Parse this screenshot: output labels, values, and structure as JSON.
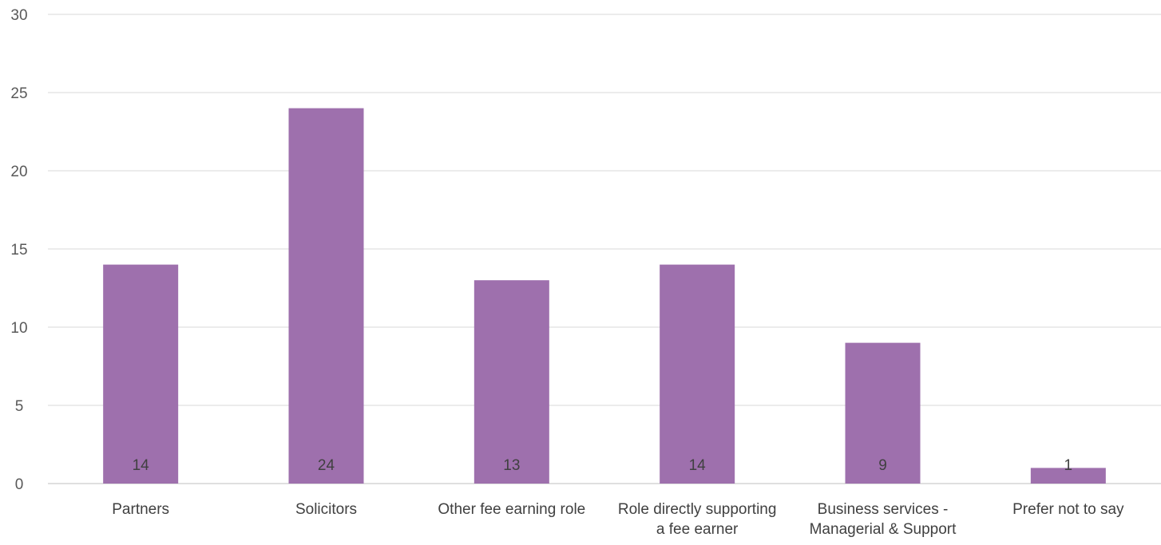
{
  "chart_data": {
    "type": "bar",
    "categories": [
      [
        "Partners"
      ],
      [
        "Solicitors"
      ],
      [
        "Other fee earning role"
      ],
      [
        "Role directly supporting",
        "a fee earner"
      ],
      [
        "Business services -",
        "Managerial & Support"
      ],
      [
        "Prefer not to say"
      ]
    ],
    "values": [
      14,
      24,
      13,
      14,
      9,
      1
    ],
    "data_labels": [
      "14",
      "24",
      "13",
      "14",
      "9",
      "1"
    ],
    "ylim": [
      0,
      30
    ],
    "yticks": [
      0,
      5,
      10,
      15,
      20,
      25,
      30
    ],
    "title": "",
    "xlabel": "",
    "ylabel": "",
    "grid": true,
    "legend": "none",
    "bar_color": "#9e70ad"
  }
}
